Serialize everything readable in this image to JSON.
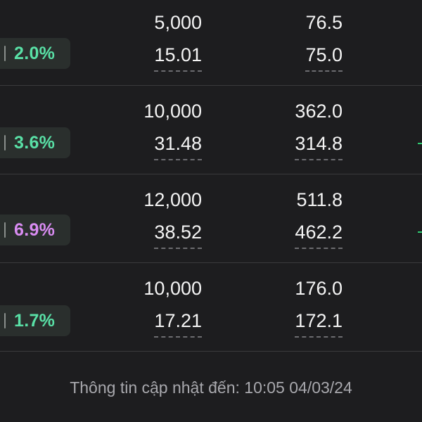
{
  "rows": [
    {
      "change": "2.0%",
      "change_color": "#59e0a6",
      "qty": "5,000",
      "price": "15.01",
      "value_top": "76.5",
      "value_bottom": "75.0"
    },
    {
      "change": "3.6%",
      "change_color": "#59e0a6",
      "qty": "10,000",
      "price": "31.48",
      "value_top": "362.0",
      "value_bottom": "314.8"
    },
    {
      "change": "6.9%",
      "change_color": "#d98cf2",
      "qty": "12,000",
      "price": "38.52",
      "value_top": "511.8",
      "value_bottom": "462.2"
    },
    {
      "change": "1.7%",
      "change_color": "#59e0a6",
      "qty": "10,000",
      "price": "17.21",
      "value_top": "176.0",
      "value_bottom": "172.1"
    }
  ],
  "footer": {
    "update_text": "Thông tin cập nhật đến: 10:05 04/03/24"
  },
  "colors": {
    "background": "#1d1d1f",
    "divider": "#3a3a3c",
    "edge_accent": "#2ecc71"
  }
}
